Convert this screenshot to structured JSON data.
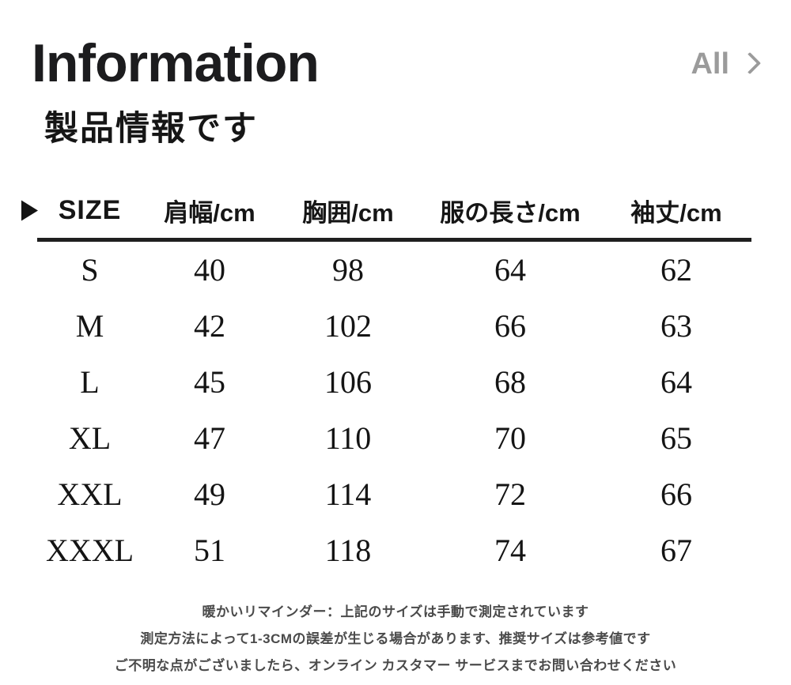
{
  "header": {
    "title": "Information",
    "subtitle": "製品情報です",
    "all_label": "All"
  },
  "size_table": {
    "columns": [
      "SIZE",
      "肩幅/cm",
      "胸囲/cm",
      "服の長さ/cm",
      "袖丈/cm"
    ],
    "rows": [
      [
        "S",
        "40",
        "98",
        "64",
        "62"
      ],
      [
        "M",
        "42",
        "102",
        "66",
        "63"
      ],
      [
        "L",
        "45",
        "106",
        "68",
        "64"
      ],
      [
        "XL",
        "47",
        "110",
        "70",
        "65"
      ],
      [
        "XXL",
        "49",
        "114",
        "72",
        "66"
      ],
      [
        "XXXL",
        "51",
        "118",
        "74",
        "67"
      ]
    ]
  },
  "notes": {
    "line1": "暖かいリマインダー：上記のサイズは手動で測定されています",
    "line2": "測定方法によって1-3CMの誤差が生じる場合があります、推奨サイズは参考値です",
    "line3": "ご不明な点がございましたら、オンライン カスタマー サービスまでお問い合わせください"
  },
  "colors": {
    "text_primary": "#1a1a1a",
    "muted_gray": "#9b9b9b",
    "note_gray": "#4a4a4a"
  },
  "icons": {
    "marker": "play-triangle",
    "all_chevron": "chevron-right"
  }
}
